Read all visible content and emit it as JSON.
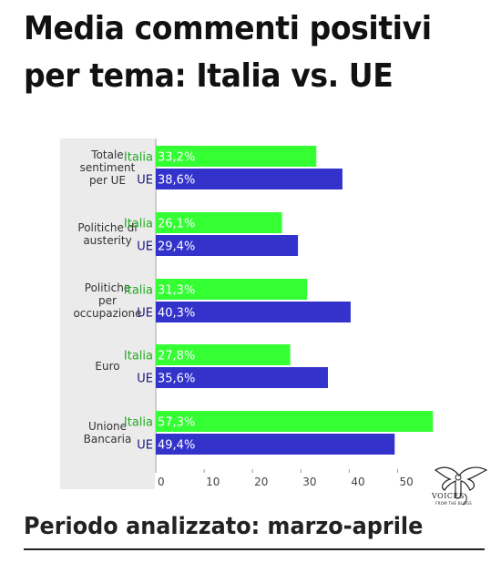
{
  "title_line1": "Media commenti positivi",
  "title_line2": "per tema: Italia vs. UE",
  "subtitle": "Periodo analizzato: marzo-aprile",
  "logo": {
    "name": "voices-from-the-blogs-logo",
    "text": "VOICES",
    "subtext": "FROM THE BLOGS"
  },
  "colors": {
    "italia": "#33ff33",
    "ue": "#3333cc",
    "italia_text": "#22aa22",
    "ue_text": "#1a1a80",
    "panel": "#ebebeb"
  },
  "chart_data": {
    "type": "bar",
    "orientation": "horizontal",
    "categories": [
      [
        "Totale",
        "sentiment",
        "per UE"
      ],
      [
        "Politiche di",
        "austerity"
      ],
      [
        "Politiche",
        "per",
        "occupazione"
      ],
      [
        "Euro"
      ],
      [
        "Unione",
        "Bancaria"
      ]
    ],
    "series": [
      {
        "name": "Italia",
        "values": [
          33.2,
          26.1,
          31.3,
          27.8,
          57.3
        ],
        "labels": [
          "33,2%",
          "26,1%",
          "31,3%",
          "27,8%",
          "57,3%"
        ]
      },
      {
        "name": "UE",
        "values": [
          38.6,
          29.4,
          40.3,
          35.6,
          49.4
        ],
        "labels": [
          "38,6%",
          "29,4%",
          "40,3%",
          "35,6%",
          "49,4%"
        ]
      }
    ],
    "xlim": [
      0,
      55
    ],
    "xticks": [
      0,
      10,
      20,
      30,
      40,
      50
    ],
    "xtick_labels": [
      "0",
      "10",
      "20",
      "30",
      "40",
      "50"
    ],
    "grid": false,
    "legend": "inline"
  }
}
